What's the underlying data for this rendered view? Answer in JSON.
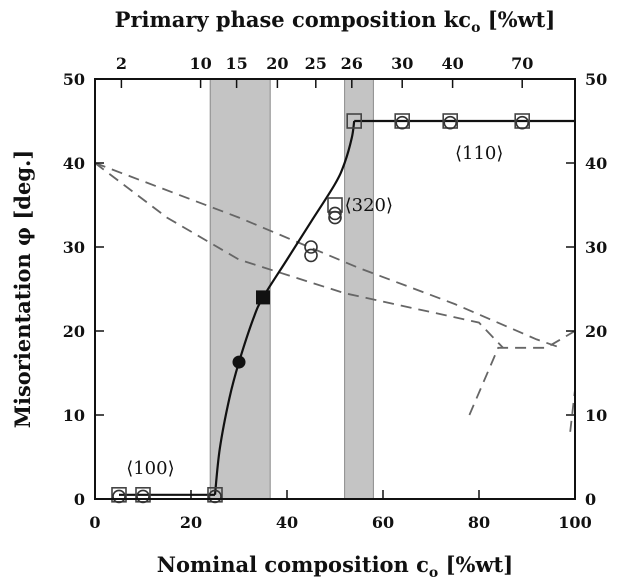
{
  "chart_data": {
    "type": "scatter",
    "xlabel": "Nominal composition c",
    "xlabel_sub": "o",
    "xlabel_unit": " [%wt]",
    "ylabel": "Misorientation φ [deg.]",
    "top_label": "Primary phase composition kc",
    "top_label_sub": "o",
    "top_label_unit": " [%wt]",
    "xlim": [
      0,
      100
    ],
    "ylim": [
      0,
      50
    ],
    "x_ticks": [
      0,
      20,
      40,
      60,
      80,
      100
    ],
    "y_ticks": [
      0,
      10,
      20,
      30,
      40,
      50
    ],
    "top_ticks": [
      {
        "label": "2",
        "x": 5.5
      },
      {
        "label": "10",
        "x": 22
      },
      {
        "label": "15",
        "x": 29.5
      },
      {
        "label": "20",
        "x": 38
      },
      {
        "label": "25",
        "x": 46
      },
      {
        "label": "26",
        "x": 53.5
      },
      {
        "label": "30",
        "x": 64
      },
      {
        "label": "40",
        "x": 74.5
      },
      {
        "label": "70",
        "x": 89
      }
    ],
    "grid": false,
    "shaded_regions": [
      [
        24,
        36.5
      ],
      [
        52,
        58
      ]
    ],
    "series": [
      {
        "marker": "open-square",
        "points": [
          [
            5,
            0.5
          ],
          [
            10,
            0.5
          ],
          [
            25,
            0.5
          ],
          [
            54,
            45
          ],
          [
            64,
            45
          ],
          [
            74,
            45
          ],
          [
            89,
            45
          ],
          [
            50,
            35
          ]
        ]
      },
      {
        "marker": "open-circle",
        "points": [
          [
            5,
            0.3
          ],
          [
            10,
            0.3
          ],
          [
            25,
            0.3
          ],
          [
            50,
            34
          ],
          [
            50,
            33.5
          ],
          [
            45,
            30
          ],
          [
            45,
            29
          ],
          [
            64,
            44.8
          ],
          [
            74,
            44.8
          ],
          [
            89,
            44.8
          ]
        ]
      },
      {
        "marker": "filled-square",
        "points": [
          [
            35,
            24
          ]
        ]
      },
      {
        "marker": "filled-circle",
        "points": [
          [
            30,
            16.3
          ]
        ]
      }
    ],
    "fit_curve": [
      [
        25,
        0.5
      ],
      [
        26,
        6
      ],
      [
        28,
        12
      ],
      [
        30,
        16.3
      ],
      [
        33,
        21.5
      ],
      [
        35,
        24
      ],
      [
        40,
        28.5
      ],
      [
        45,
        33
      ],
      [
        50,
        37.5
      ],
      [
        52,
        40
      ],
      [
        53.5,
        43
      ],
      [
        54,
        45
      ]
    ],
    "line_100": [
      [
        5,
        0.5
      ],
      [
        25,
        0.5
      ]
    ],
    "line_110": [
      [
        54,
        45
      ],
      [
        100,
        45
      ]
    ],
    "dashed_lines": [
      [
        [
          0,
          40
        ],
        [
          30,
          33.5
        ],
        [
          55,
          27.5
        ],
        [
          75,
          23.2
        ],
        [
          92,
          19
        ],
        [
          97,
          18
        ]
      ],
      [
        [
          0,
          40
        ],
        [
          15,
          33.5
        ],
        [
          30,
          28.5
        ],
        [
          52,
          24.5
        ],
        [
          68,
          22.5
        ],
        [
          80,
          21
        ],
        [
          85,
          18
        ]
      ],
      [
        [
          78,
          10
        ],
        [
          84,
          18
        ],
        [
          94,
          18
        ],
        [
          100,
          20
        ]
      ],
      [
        [
          99,
          8
        ],
        [
          100,
          13
        ],
        [
          100,
          20
        ]
      ]
    ],
    "annotations": [
      {
        "text": "⟨100⟩",
        "x": 6.5,
        "y": 3.0
      },
      {
        "text": "⟨320⟩",
        "x": 52,
        "y": 34.3
      },
      {
        "text": "⟨110⟩",
        "x": 75,
        "y": 40.5
      }
    ]
  }
}
